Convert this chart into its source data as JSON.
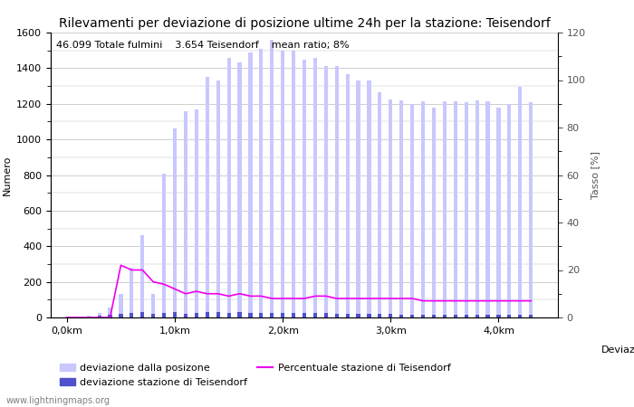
{
  "title": "Rilevamenti per deviazione di posizione ultime 24h per la stazione: Teisendorf",
  "subtitle": "46.099 Totale fulmini    3.654 Teisendorf    mean ratio; 8%",
  "xlabel": "Deviazioni",
  "ylabel_left": "Numero",
  "ylabel_right": "Tasso [%]",
  "watermark": "www.lightningmaps.org",
  "ylim_left": [
    0,
    1600
  ],
  "ylim_right": [
    0,
    120
  ],
  "x_tick_labels": [
    "0,0km",
    "1,0km",
    "2,0km",
    "3,0km",
    "4,0km"
  ],
  "x_tick_positions": [
    0.0,
    1.0,
    2.0,
    3.0,
    4.0
  ],
  "total_bars": [
    5,
    2,
    10,
    25,
    55,
    130,
    280,
    460,
    130,
    810,
    1060,
    1160,
    1170,
    1350,
    1330,
    1460,
    1430,
    1490,
    1510,
    1560,
    1500,
    1500,
    1450,
    1460,
    1410,
    1410,
    1365,
    1330,
    1330,
    1265,
    1225,
    1220,
    1200,
    1215,
    1180,
    1215,
    1215,
    1210,
    1220,
    1215,
    1180,
    1200,
    1295,
    1210
  ],
  "station_bars": [
    2,
    1,
    3,
    8,
    15,
    20,
    25,
    30,
    20,
    25,
    30,
    22,
    25,
    28,
    28,
    25,
    28,
    26,
    24,
    24,
    24,
    24,
    24,
    26,
    26,
    20,
    20,
    20,
    20,
    18,
    18,
    16,
    16,
    15,
    14,
    13,
    14,
    14,
    15,
    15,
    14,
    14,
    15,
    15
  ],
  "percentages": [
    0,
    0,
    0,
    0,
    0,
    22,
    20,
    20,
    15,
    14,
    12,
    10,
    11,
    10,
    10,
    9,
    10,
    9,
    9,
    8,
    8,
    8,
    8,
    9,
    9,
    8,
    8,
    8,
    8,
    8,
    8,
    8,
    8,
    7,
    7,
    7,
    7,
    7,
    7,
    7,
    7,
    7,
    7,
    7
  ],
  "color_total": "#c8c8ff",
  "color_station": "#5050cc",
  "color_line": "#ee00ee",
  "background_color": "#ffffff",
  "grid_color": "#bbbbbb",
  "title_fontsize": 10,
  "label_fontsize": 8,
  "tick_fontsize": 8,
  "legend_fontsize": 8,
  "subtitle_fontsize": 8
}
